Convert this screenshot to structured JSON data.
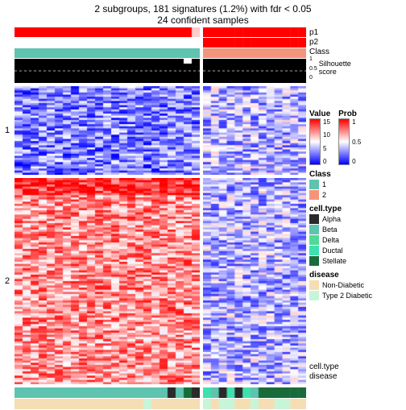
{
  "title": "2 subgroups, 181 signatures (1.2%) with fdr < 0.05",
  "subtitle": "24 confident samples",
  "layout": {
    "left_cols": 23,
    "right_cols": 13,
    "left_width": 230,
    "right_width": 128,
    "group1_rows": 42,
    "group2_rows": 96,
    "group1_height": 110,
    "group2_height": 256
  },
  "tracks": {
    "p1": {
      "label": "p1",
      "left_color": "#ff0000",
      "right_color": "#ff0000",
      "left_end_color": "#ffcccc"
    },
    "p2": {
      "label": "p2",
      "left_color": "#ffffff",
      "right_color": "#ff0000"
    },
    "class": {
      "label": "Class",
      "left_color": "#5ec4b0",
      "right_color": "#f4947a"
    },
    "silhouette": {
      "label": "Silhouette\nscore",
      "bg": "#000000",
      "ticks": [
        "1",
        "0.5",
        "0"
      ],
      "dash_y": 0.5,
      "notch_col": 21
    }
  },
  "bottom_tracks": {
    "cell_type": {
      "label": "cell.type",
      "left_colors": [
        "#5ec4b0",
        "#5ec4b0",
        "#5ec4b0",
        "#5ec4b0",
        "#5ec4b0",
        "#5ec4b0",
        "#5ec4b0",
        "#5ec4b0",
        "#5ec4b0",
        "#5ec4b0",
        "#5ec4b0",
        "#5ec4b0",
        "#5ec4b0",
        "#5ec4b0",
        "#5ec4b0",
        "#5ec4b0",
        "#5ec4b0",
        "#5ec4b0",
        "#5ec4b0",
        "#2a2a2a",
        "#5ec4b0",
        "#1a6b3a",
        "#2a2a2a"
      ],
      "right_colors": [
        "#3fe0b0",
        "#5ec4b0",
        "#2a2a2a",
        "#3fe0b0",
        "#2a2a2a",
        "#3fe0b0",
        "#5ec4b0",
        "#1a6b3a",
        "#1a6b3a",
        "#1a6b3a",
        "#1a6b3a",
        "#1a6b3a",
        "#1a6b3a"
      ]
    },
    "disease": {
      "label": "disease",
      "left_colors": [
        "#f5deb3",
        "#f5deb3",
        "#f5deb3",
        "#f5deb3",
        "#f5deb3",
        "#f5deb3",
        "#f5deb3",
        "#f5deb3",
        "#f5deb3",
        "#f5deb3",
        "#f5deb3",
        "#f5deb3",
        "#f5deb3",
        "#f5deb3",
        "#f5deb3",
        "#f5deb3",
        "#c8f5d8",
        "#f5deb3",
        "#f5deb3",
        "#f5deb3",
        "#f5deb3",
        "#f5deb3",
        "#f5deb3"
      ],
      "right_colors": [
        "#c8f5d8",
        "#f5deb3",
        "#c8f5d8",
        "#c8f5d8",
        "#f5deb3",
        "#f5deb3",
        "#c8f5d8",
        "#f5deb3",
        "#f5deb3",
        "#c8f5d8",
        "#c8f5d8",
        "#f5deb3",
        "#f5deb3"
      ]
    }
  },
  "row_groups": {
    "g1": "1",
    "g2": "2"
  },
  "colormap": {
    "stops": [
      "#0000ff",
      "#ffffff",
      "#ff0000"
    ],
    "value_min": 0,
    "value_max": 15
  },
  "legends": {
    "value": {
      "title": "Value",
      "ticks": [
        "15",
        "10",
        "5",
        "0"
      ]
    },
    "prob": {
      "title": "Prob",
      "ticks": [
        "1",
        "0.5",
        "0"
      ]
    },
    "class": {
      "title": "Class",
      "items": [
        {
          "c": "#5ec4b0",
          "l": "1"
        },
        {
          "c": "#f4947a",
          "l": "2"
        }
      ]
    },
    "cell_type": {
      "title": "cell.type",
      "items": [
        {
          "c": "#2a2a2a",
          "l": "Alpha"
        },
        {
          "c": "#5ec4b0",
          "l": "Beta"
        },
        {
          "c": "#52d998",
          "l": "Delta"
        },
        {
          "c": "#3fe0b0",
          "l": "Ductal"
        },
        {
          "c": "#1a6b3a",
          "l": "Stellate"
        }
      ]
    },
    "disease": {
      "title": "disease",
      "items": [
        {
          "c": "#f5deb3",
          "l": "Non-Diabetic"
        },
        {
          "c": "#c8f5d8",
          "l": "Type 2 Diabetic"
        }
      ]
    }
  },
  "heatmap_seed": {
    "g1_left_bias": 0.25,
    "g1_right_bias": 0.35,
    "g2_left_bias": 0.72,
    "g2_right_bias": 0.35,
    "g2_left_top_red": true
  }
}
